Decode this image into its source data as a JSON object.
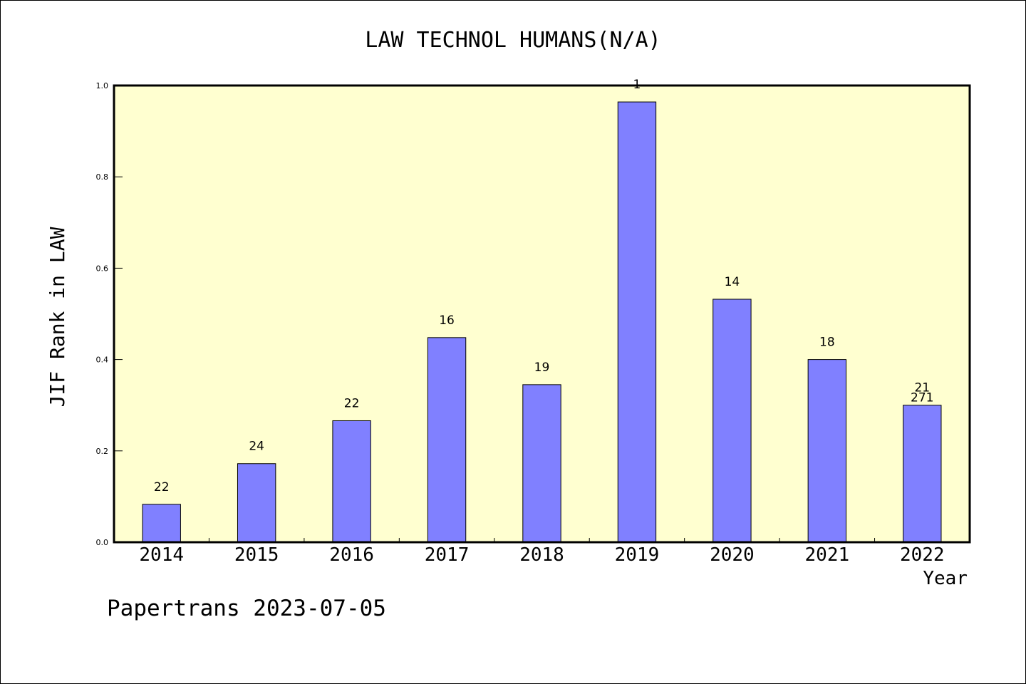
{
  "chart_data": {
    "type": "bar",
    "title": "LAW TECHNOL HUMANS(N/A)",
    "xlabel": "Year",
    "ylabel": "JIF Rank in LAW",
    "ylim": [
      0,
      1.0
    ],
    "yticks": [
      "0.0",
      "0.2",
      "0.4",
      "0.6",
      "0.8",
      "1.0"
    ],
    "categories": [
      "2014",
      "2015",
      "2016",
      "2017",
      "2018",
      "2019",
      "2020",
      "2021",
      "2022"
    ],
    "values": [
      0.083,
      0.172,
      0.266,
      0.448,
      0.345,
      0.964,
      0.532,
      0.4,
      0.3
    ],
    "labels": [
      "22",
      "24",
      "22",
      "16",
      "19",
      "1",
      "14",
      "18",
      "21\n271"
    ],
    "grid": false,
    "colors": {
      "plot_bg": "#ffffd0",
      "bar_fill": "#8080ff",
      "bar_stroke": "#000000"
    }
  },
  "footer": {
    "text": "Papertrans 2023-07-05"
  }
}
